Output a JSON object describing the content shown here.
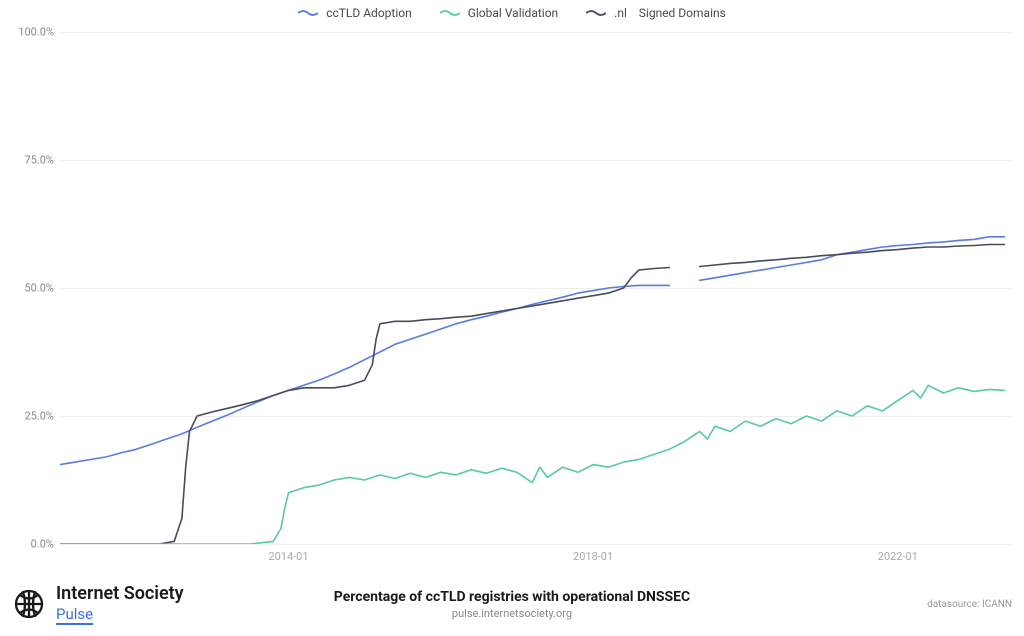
{
  "chart": {
    "type": "line",
    "background_color": "#ffffff",
    "grid_color": "#eeeeee",
    "axis_label_color": "#888",
    "axis_label_fontsize": 11,
    "legend_fontsize": 12,
    "ylim": [
      0,
      100
    ],
    "ytick_step": 25,
    "yticks": [
      {
        "v": 0,
        "label": "0.0%"
      },
      {
        "v": 25,
        "label": "25.0%"
      },
      {
        "v": 50,
        "label": "50.0%"
      },
      {
        "v": 75,
        "label": "75.0%"
      },
      {
        "v": 100,
        "label": "100.0%"
      }
    ],
    "xlim": [
      2011.0,
      2023.5
    ],
    "xticks": [
      {
        "v": 2014.0,
        "label": "2014-01"
      },
      {
        "v": 2018.0,
        "label": "2018-01"
      },
      {
        "v": 2022.0,
        "label": "2022-01"
      }
    ],
    "legend": [
      {
        "label": "ccTLD Adoption",
        "color": "#5a7be0",
        "style": "wavy"
      },
      {
        "label": "Global Validation",
        "color": "#58c9a0",
        "style": "wavy"
      },
      {
        "label": ".nl    Signed Domains",
        "color": "#4a4a5a",
        "style": "wavy"
      }
    ],
    "series": [
      {
        "name": "ccTLD Adoption",
        "color": "#5a7be0",
        "stroke_width": 1.6,
        "gap_between": [
          2019.1,
          2019.3
        ],
        "points": [
          [
            2011.0,
            15.5
          ],
          [
            2011.2,
            16.0
          ],
          [
            2011.4,
            16.5
          ],
          [
            2011.6,
            17.0
          ],
          [
            2011.8,
            17.8
          ],
          [
            2012.0,
            18.5
          ],
          [
            2012.2,
            19.5
          ],
          [
            2012.4,
            20.5
          ],
          [
            2012.6,
            21.5
          ],
          [
            2012.8,
            22.8
          ],
          [
            2013.0,
            24.0
          ],
          [
            2013.2,
            25.2
          ],
          [
            2013.4,
            26.5
          ],
          [
            2013.6,
            27.8
          ],
          [
            2013.8,
            29.0
          ],
          [
            2014.0,
            30.0
          ],
          [
            2014.2,
            31.0
          ],
          [
            2014.4,
            32.0
          ],
          [
            2014.6,
            33.2
          ],
          [
            2014.8,
            34.5
          ],
          [
            2015.0,
            36.0
          ],
          [
            2015.2,
            37.5
          ],
          [
            2015.4,
            39.0
          ],
          [
            2015.6,
            40.0
          ],
          [
            2015.8,
            41.0
          ],
          [
            2016.0,
            42.0
          ],
          [
            2016.2,
            43.0
          ],
          [
            2016.4,
            43.8
          ],
          [
            2016.6,
            44.5
          ],
          [
            2016.8,
            45.3
          ],
          [
            2017.0,
            46.0
          ],
          [
            2017.2,
            46.8
          ],
          [
            2017.4,
            47.5
          ],
          [
            2017.6,
            48.2
          ],
          [
            2017.8,
            49.0
          ],
          [
            2018.0,
            49.5
          ],
          [
            2018.2,
            50.0
          ],
          [
            2018.4,
            50.3
          ],
          [
            2018.6,
            50.5
          ],
          [
            2018.8,
            50.5
          ],
          [
            2019.0,
            50.5
          ],
          [
            2019.2,
            51.0
          ],
          [
            2019.4,
            51.5
          ],
          [
            2019.6,
            52.0
          ],
          [
            2019.8,
            52.5
          ],
          [
            2020.0,
            53.0
          ],
          [
            2020.2,
            53.5
          ],
          [
            2020.4,
            54.0
          ],
          [
            2020.6,
            54.5
          ],
          [
            2020.8,
            55.0
          ],
          [
            2021.0,
            55.5
          ],
          [
            2021.2,
            56.5
          ],
          [
            2021.4,
            57.0
          ],
          [
            2021.6,
            57.5
          ],
          [
            2021.8,
            58.0
          ],
          [
            2022.0,
            58.3
          ],
          [
            2022.2,
            58.5
          ],
          [
            2022.4,
            58.8
          ],
          [
            2022.6,
            59.0
          ],
          [
            2022.8,
            59.3
          ],
          [
            2023.0,
            59.5
          ],
          [
            2023.2,
            60.0
          ],
          [
            2023.4,
            60.0
          ]
        ]
      },
      {
        "name": ".nl Signed Domains",
        "color": "#4a4a5a",
        "stroke_width": 1.6,
        "gap_between": [
          2019.1,
          2019.3
        ],
        "points": [
          [
            2011.0,
            0.0
          ],
          [
            2011.5,
            0.0
          ],
          [
            2012.0,
            0.0
          ],
          [
            2012.3,
            0.0
          ],
          [
            2012.5,
            0.5
          ],
          [
            2012.6,
            5.0
          ],
          [
            2012.65,
            15.0
          ],
          [
            2012.7,
            22.0
          ],
          [
            2012.8,
            25.0
          ],
          [
            2013.0,
            25.8
          ],
          [
            2013.2,
            26.5
          ],
          [
            2013.4,
            27.2
          ],
          [
            2013.6,
            28.0
          ],
          [
            2013.8,
            29.0
          ],
          [
            2014.0,
            30.0
          ],
          [
            2014.2,
            30.5
          ],
          [
            2014.4,
            30.5
          ],
          [
            2014.6,
            30.5
          ],
          [
            2014.8,
            31.0
          ],
          [
            2015.0,
            32.0
          ],
          [
            2015.1,
            35.0
          ],
          [
            2015.15,
            40.0
          ],
          [
            2015.2,
            43.0
          ],
          [
            2015.4,
            43.5
          ],
          [
            2015.6,
            43.5
          ],
          [
            2015.8,
            43.8
          ],
          [
            2016.0,
            44.0
          ],
          [
            2016.2,
            44.3
          ],
          [
            2016.4,
            44.5
          ],
          [
            2016.6,
            45.0
          ],
          [
            2016.8,
            45.5
          ],
          [
            2017.0,
            46.0
          ],
          [
            2017.2,
            46.5
          ],
          [
            2017.4,
            47.0
          ],
          [
            2017.6,
            47.5
          ],
          [
            2017.8,
            48.0
          ],
          [
            2018.0,
            48.5
          ],
          [
            2018.2,
            49.0
          ],
          [
            2018.4,
            50.0
          ],
          [
            2018.5,
            52.0
          ],
          [
            2018.6,
            53.5
          ],
          [
            2018.8,
            53.8
          ],
          [
            2019.0,
            54.0
          ],
          [
            2019.4,
            54.2
          ],
          [
            2019.6,
            54.5
          ],
          [
            2019.8,
            54.8
          ],
          [
            2020.0,
            55.0
          ],
          [
            2020.2,
            55.3
          ],
          [
            2020.4,
            55.5
          ],
          [
            2020.6,
            55.8
          ],
          [
            2020.8,
            56.0
          ],
          [
            2021.0,
            56.3
          ],
          [
            2021.2,
            56.5
          ],
          [
            2021.4,
            56.8
          ],
          [
            2021.6,
            57.0
          ],
          [
            2021.8,
            57.3
          ],
          [
            2022.0,
            57.5
          ],
          [
            2022.2,
            57.8
          ],
          [
            2022.4,
            58.0
          ],
          [
            2022.6,
            58.0
          ],
          [
            2022.8,
            58.2
          ],
          [
            2023.0,
            58.3
          ],
          [
            2023.2,
            58.5
          ],
          [
            2023.4,
            58.5
          ]
        ]
      },
      {
        "name": "Global Validation",
        "color": "#58c9a0",
        "stroke_width": 1.6,
        "points": [
          [
            2011.0,
            0.0
          ],
          [
            2012.0,
            0.0
          ],
          [
            2013.0,
            0.0
          ],
          [
            2013.5,
            0.0
          ],
          [
            2013.8,
            0.5
          ],
          [
            2013.9,
            3.0
          ],
          [
            2013.95,
            7.0
          ],
          [
            2014.0,
            10.0
          ],
          [
            2014.2,
            11.0
          ],
          [
            2014.4,
            11.5
          ],
          [
            2014.6,
            12.5
          ],
          [
            2014.8,
            13.0
          ],
          [
            2015.0,
            12.5
          ],
          [
            2015.2,
            13.5
          ],
          [
            2015.4,
            12.8
          ],
          [
            2015.6,
            13.8
          ],
          [
            2015.8,
            13.0
          ],
          [
            2016.0,
            14.0
          ],
          [
            2016.2,
            13.5
          ],
          [
            2016.4,
            14.5
          ],
          [
            2016.6,
            13.8
          ],
          [
            2016.8,
            14.8
          ],
          [
            2017.0,
            14.0
          ],
          [
            2017.2,
            12.0
          ],
          [
            2017.3,
            15.0
          ],
          [
            2017.4,
            13.0
          ],
          [
            2017.6,
            15.0
          ],
          [
            2017.8,
            14.0
          ],
          [
            2018.0,
            15.5
          ],
          [
            2018.2,
            15.0
          ],
          [
            2018.4,
            16.0
          ],
          [
            2018.6,
            16.5
          ],
          [
            2018.8,
            17.5
          ],
          [
            2019.0,
            18.5
          ],
          [
            2019.2,
            20.0
          ],
          [
            2019.4,
            22.0
          ],
          [
            2019.5,
            20.5
          ],
          [
            2019.6,
            23.0
          ],
          [
            2019.8,
            22.0
          ],
          [
            2020.0,
            24.0
          ],
          [
            2020.2,
            23.0
          ],
          [
            2020.4,
            24.5
          ],
          [
            2020.6,
            23.5
          ],
          [
            2020.8,
            25.0
          ],
          [
            2021.0,
            24.0
          ],
          [
            2021.2,
            26.0
          ],
          [
            2021.4,
            25.0
          ],
          [
            2021.6,
            27.0
          ],
          [
            2021.8,
            26.0
          ],
          [
            2022.0,
            28.0
          ],
          [
            2022.2,
            30.0
          ],
          [
            2022.3,
            28.5
          ],
          [
            2022.4,
            31.0
          ],
          [
            2022.6,
            29.5
          ],
          [
            2022.8,
            30.5
          ],
          [
            2023.0,
            29.8
          ],
          [
            2023.2,
            30.2
          ],
          [
            2023.4,
            30.0
          ]
        ]
      }
    ]
  },
  "footer": {
    "logo_line1": "Internet Society",
    "logo_line2": "Pulse",
    "title": "Percentage of ccTLD registries with operational DNSSEC",
    "subtitle": "pulse.internetsociety.org",
    "datasource": "datasource: ICANN",
    "title_fontsize": 14,
    "title_weight": 700,
    "subtitle_fontsize": 11,
    "logo_color": "#1a1a1a",
    "pulse_color": "#3b6ee0"
  }
}
